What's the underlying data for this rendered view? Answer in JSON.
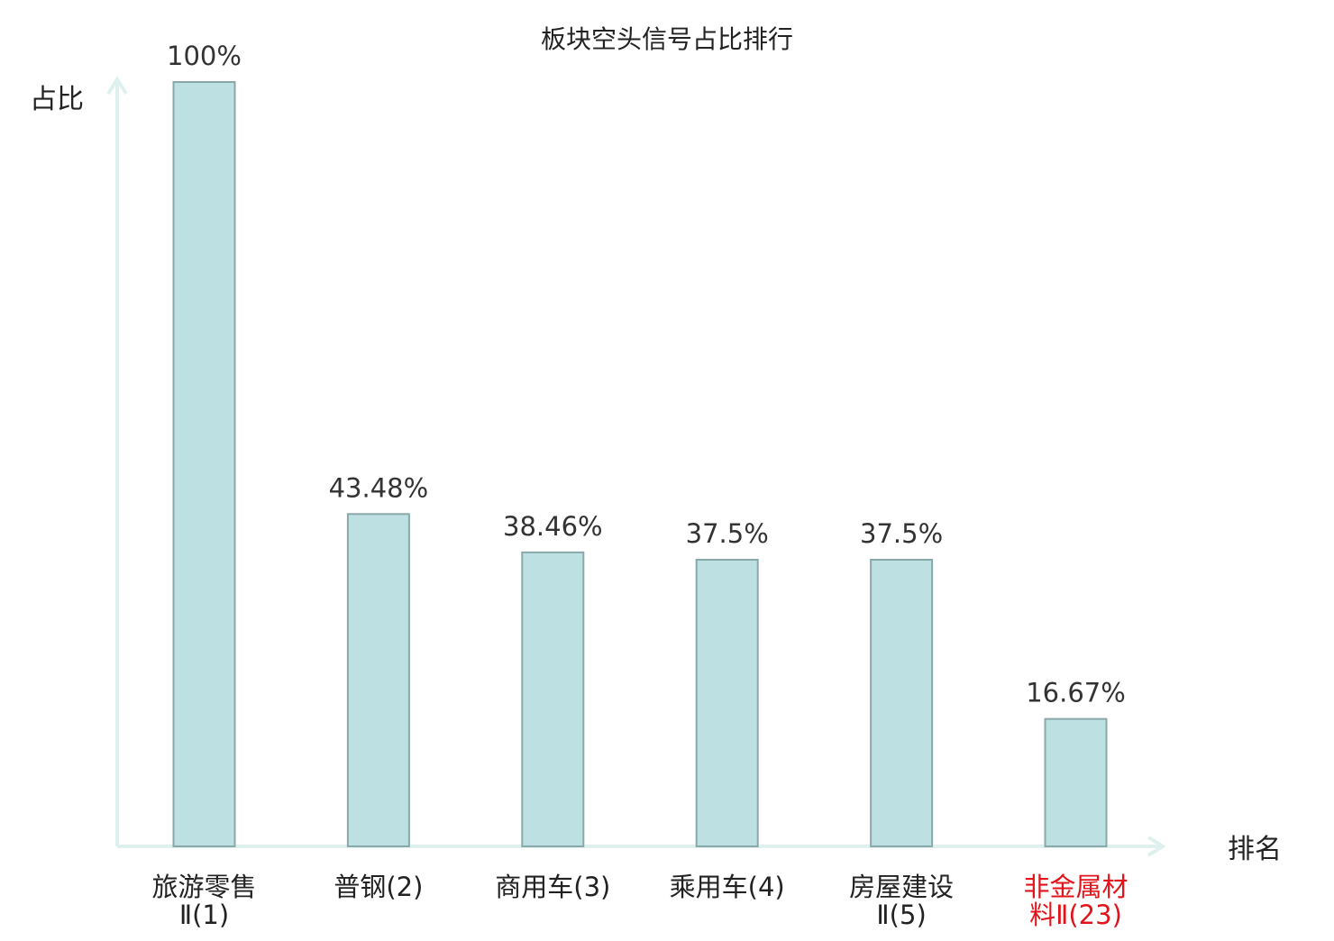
{
  "chart_data": {
    "type": "bar",
    "title": "板块空头信号占比排行",
    "xlabel": "排名",
    "ylabel": "占比",
    "ylim": [
      0,
      100
    ],
    "grid": false,
    "categories": [
      {
        "lines": [
          "旅游零售",
          "Ⅱ(1)"
        ],
        "highlight": false
      },
      {
        "lines": [
          "普钢(2)"
        ],
        "highlight": false
      },
      {
        "lines": [
          "商用车(3)"
        ],
        "highlight": false
      },
      {
        "lines": [
          "乘用车(4)"
        ],
        "highlight": false
      },
      {
        "lines": [
          "房屋建设",
          "Ⅱ(5)"
        ],
        "highlight": false
      },
      {
        "lines": [
          "非金属材",
          "料Ⅱ(23)"
        ],
        "highlight": true
      }
    ],
    "values": [
      100,
      43.48,
      38.46,
      37.5,
      37.5,
      16.67
    ],
    "value_labels": [
      "100%",
      "43.48%",
      "38.46%",
      "37.5%",
      "37.5%",
      "16.67%"
    ]
  },
  "colors": {
    "bar_fill": "#bde1e3",
    "bar_stroke": "#8aa8ab",
    "axis": "#dff1ef",
    "text": "#222222",
    "value_text": "#333333",
    "highlight": "#e0141a"
  }
}
